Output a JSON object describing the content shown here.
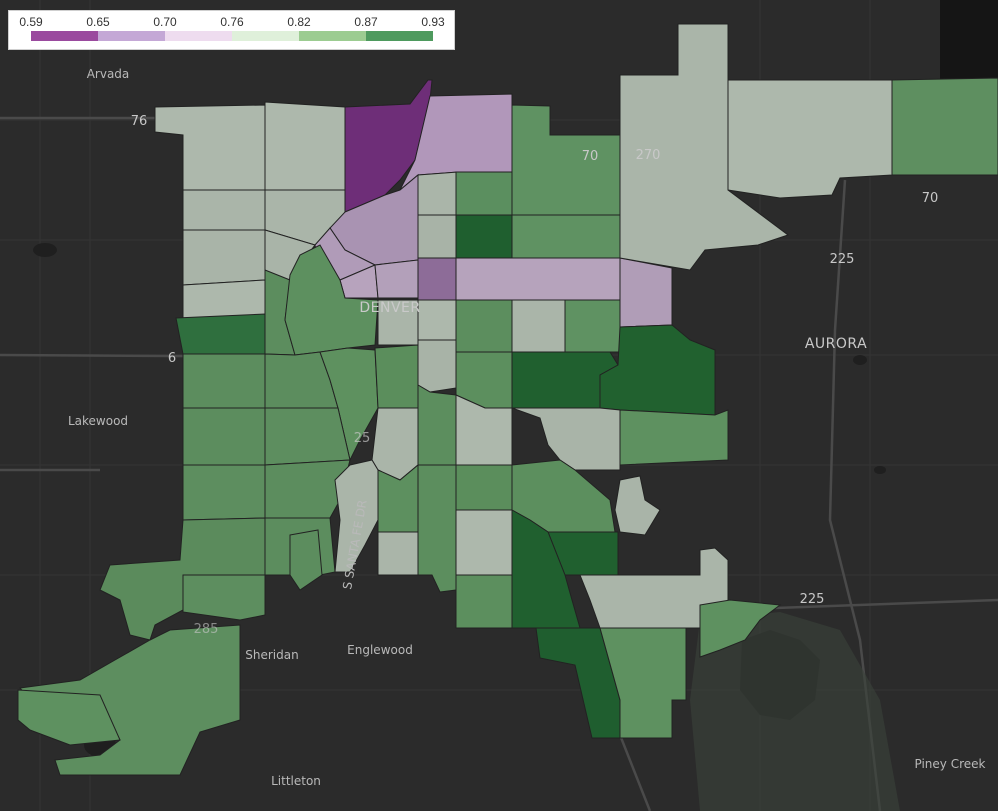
{
  "legend": {
    "ticks": [
      "0.59",
      "0.65",
      "0.70",
      "0.76",
      "0.82",
      "0.87",
      "0.93"
    ],
    "colors": [
      "#9a4a9e",
      "#c4a8d6",
      "#eedcef",
      "#dff0da",
      "#9ccc91",
      "#4e9a5e"
    ]
  },
  "places": {
    "arvada": "Arvada",
    "lakewood": "Lakewood",
    "sheridan": "Sheridan",
    "englewood": "Englewood",
    "littleton": "Littleton",
    "denver": "DENVER",
    "aurora": "AURORA",
    "piney_creek": "Piney Creek",
    "santa_fe": "S SANTA FE DR"
  },
  "roads": {
    "r76": "76",
    "r70a": "70",
    "r270": "270",
    "r70b": "70",
    "r225a": "225",
    "r225b": "225",
    "r6": "6",
    "r25": "25",
    "r285": "285"
  },
  "colors": {
    "background": "#2b2b2b",
    "water": "#1f1f1f",
    "district_border": "#222222"
  }
}
